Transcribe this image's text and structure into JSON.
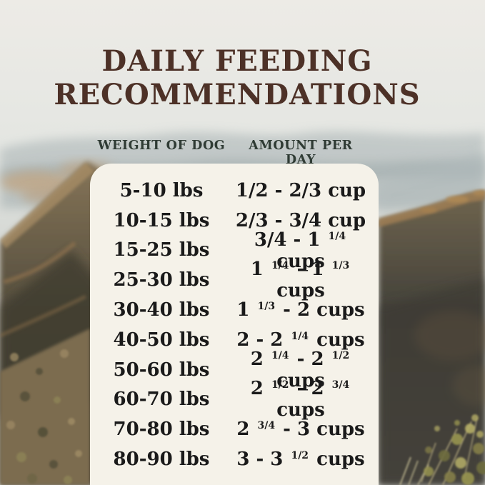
{
  "title": {
    "line1": "DAILY FEEDING",
    "line2": "RECOMMENDATIONS"
  },
  "columns": {
    "weight": "WEIGHT OF DOG",
    "amount": "AMOUNT PER DAY"
  },
  "rows": [
    {
      "weight": "5-10 lbs",
      "amount": "1/2 - 2/3 cup"
    },
    {
      "weight": "10-15 lbs",
      "amount": "2/3 - 3/4 cup"
    },
    {
      "weight": "15-25 lbs",
      "amount": "3/4 - 1 {1/4} cups"
    },
    {
      "weight": "25-30 lbs",
      "amount": "1 {1/4} - 1 {1/3} cups"
    },
    {
      "weight": "30-40 lbs",
      "amount": "1 {1/3} - 2 cups"
    },
    {
      "weight": "40-50 lbs",
      "amount": "2 - 2 {1/4} cups"
    },
    {
      "weight": "50-60 lbs",
      "amount": "2 {1/4} - 2 {1/2} cups"
    },
    {
      "weight": "60-70 lbs",
      "amount": "2 {1/2} - 2 {3/4} cups"
    },
    {
      "weight": "70-80 lbs",
      "amount": "2 {3/4} - 3 cups"
    },
    {
      "weight": "80-90 lbs",
      "amount": "3 - 3 {1/2} cups"
    }
  ],
  "chart_data": {
    "type": "table",
    "title": "Daily Feeding Recommendations",
    "columns": [
      "Weight of Dog",
      "Amount Per Day"
    ],
    "rows": [
      [
        "5-10 lbs",
        "1/2 - 2/3 cup"
      ],
      [
        "10-15 lbs",
        "2/3 - 3/4 cup"
      ],
      [
        "15-25 lbs",
        "3/4 - 1 1/4 cups"
      ],
      [
        "25-30 lbs",
        "1 1/4 - 1 1/3 cups"
      ],
      [
        "30-40 lbs",
        "1 1/3 - 2 cups"
      ],
      [
        "40-50 lbs",
        "2 - 2 1/4 cups"
      ],
      [
        "50-60 lbs",
        "2 1/4 - 2 1/2 cups"
      ],
      [
        "60-70 lbs",
        "2 1/2 - 2 3/4 cups"
      ],
      [
        "70-80 lbs",
        "2 3/4 - 3 cups"
      ],
      [
        "80-90 lbs",
        "3 - 3 1/2 cups"
      ]
    ]
  },
  "colors": {
    "title_text": "#4d3127",
    "header_text": "#2f3b34",
    "row_text": "#1a1a1a",
    "card_background": "#f5f2e9"
  }
}
